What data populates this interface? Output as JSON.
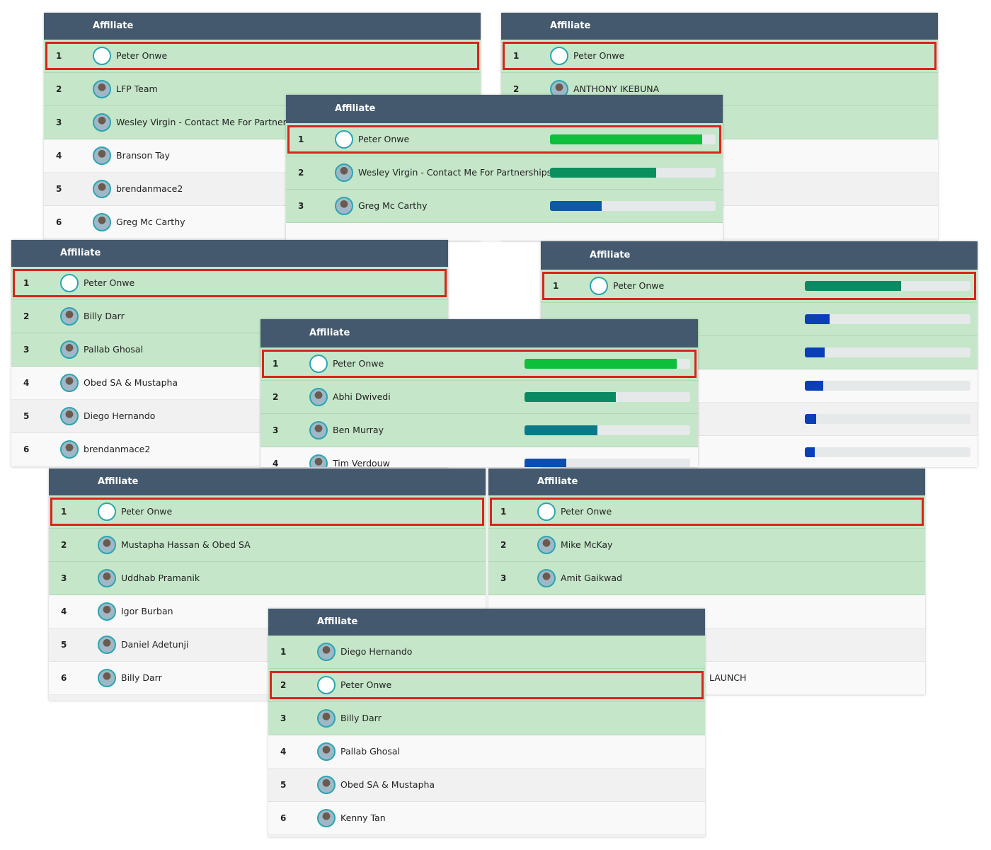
{
  "panels": [
    {
      "header": "Affiliate",
      "rows": [
        {
          "rank": 1,
          "name": "Peter Onwe",
          "highlighted": true
        },
        {
          "rank": 2,
          "name": "LFP Team"
        },
        {
          "rank": 3,
          "name": "Wesley Virgin - Contact Me For Partnerships"
        },
        {
          "rank": 4,
          "name": "Branson Tay"
        },
        {
          "rank": 5,
          "name": "brendanmace2"
        },
        {
          "rank": 6,
          "name": "Greg Mc Carthy"
        }
      ]
    },
    {
      "header": "Affiliate",
      "rows": [
        {
          "rank": 1,
          "name": "Peter Onwe",
          "highlighted": true
        },
        {
          "rank": 2,
          "name": "ANTHONY IKEBUNA"
        }
      ]
    },
    {
      "header": "Affiliate",
      "rows": [
        {
          "rank": 1,
          "name": "Peter Onwe",
          "highlighted": true,
          "bar": 92,
          "bar_color": "#0dbf3a"
        },
        {
          "rank": 2,
          "name": "Wesley Virgin - Contact Me For Partnerships",
          "bar": 64,
          "bar_color": "#0a8f5e"
        },
        {
          "rank": 3,
          "name": "Greg Mc Carthy",
          "bar": 31,
          "bar_color": "#0d5aa0"
        }
      ]
    },
    {
      "header": "Affiliate",
      "rows": [
        {
          "rank": 1,
          "name": "Peter Onwe",
          "highlighted": true
        },
        {
          "rank": 2,
          "name": "Billy Darr"
        },
        {
          "rank": 3,
          "name": "Pallab Ghosal"
        },
        {
          "rank": 4,
          "name": "Obed SA & Mustapha"
        },
        {
          "rank": 5,
          "name": "Diego Hernando"
        },
        {
          "rank": 6,
          "name": "brendanmace2"
        }
      ]
    },
    {
      "header": "Affiliate",
      "rows": [
        {
          "rank": 1,
          "name": "Peter Onwe",
          "highlighted": true,
          "bar": 58,
          "bar_color": "#0a8a62"
        },
        {
          "rank": null,
          "name": null,
          "bar": 15,
          "bar_color": "#0a3fb8"
        },
        {
          "rank": null,
          "name": null,
          "bar": 12,
          "bar_color": "#0a3fb8"
        },
        {
          "rank": null,
          "name": null,
          "bar": 11,
          "bar_color": "#0a3fb8"
        },
        {
          "rank": null,
          "name": null,
          "bar": 7,
          "bar_color": "#0a3fb8"
        },
        {
          "rank": null,
          "name": null,
          "bar": 6,
          "bar_color": "#0a3fb8"
        }
      ]
    },
    {
      "header": "Affiliate",
      "rows": [
        {
          "rank": 1,
          "name": "Peter Onwe",
          "highlighted": true,
          "bar": 92,
          "bar_color": "#0dbf3a"
        },
        {
          "rank": 2,
          "name": "Abhi Dwivedi",
          "bar": 55,
          "bar_color": "#0a8a62"
        },
        {
          "rank": 3,
          "name": "Ben Murray",
          "bar": 44,
          "bar_color": "#0a7a8a"
        },
        {
          "rank": 4,
          "name": "Tim Verdouw",
          "bar": 25,
          "bar_color": "#0a4fb0"
        }
      ]
    },
    {
      "header": "Affiliate",
      "rows": [
        {
          "rank": 1,
          "name": "Peter Onwe",
          "highlighted": true
        },
        {
          "rank": 2,
          "name": "Mustapha Hassan & Obed SA"
        },
        {
          "rank": 3,
          "name": "Uddhab Pramanik"
        },
        {
          "rank": 4,
          "name": "Igor Burban"
        },
        {
          "rank": 5,
          "name": "Daniel Adetunji"
        },
        {
          "rank": 6,
          "name": "Billy Darr"
        }
      ]
    },
    {
      "header": "Affiliate",
      "rows": [
        {
          "rank": 1,
          "name": "Peter Onwe",
          "highlighted": true
        },
        {
          "rank": 2,
          "name": "Mike McKay"
        },
        {
          "rank": 3,
          "name": "Amit Gaikwad"
        },
        {
          "rank": null,
          "name": null
        },
        {
          "rank": null,
          "name": null
        },
        {
          "rank": null,
          "name": "LAUNCH"
        }
      ]
    },
    {
      "header": "Affiliate",
      "rows": [
        {
          "rank": 1,
          "name": "Diego Hernando"
        },
        {
          "rank": 2,
          "name": "Peter Onwe",
          "highlighted": true
        },
        {
          "rank": 3,
          "name": "Billy Darr"
        },
        {
          "rank": 4,
          "name": "Pallab Ghosal"
        },
        {
          "rank": 5,
          "name": "Obed SA & Mustapha"
        },
        {
          "rank": 6,
          "name": "Kenny Tan"
        }
      ]
    }
  ]
}
